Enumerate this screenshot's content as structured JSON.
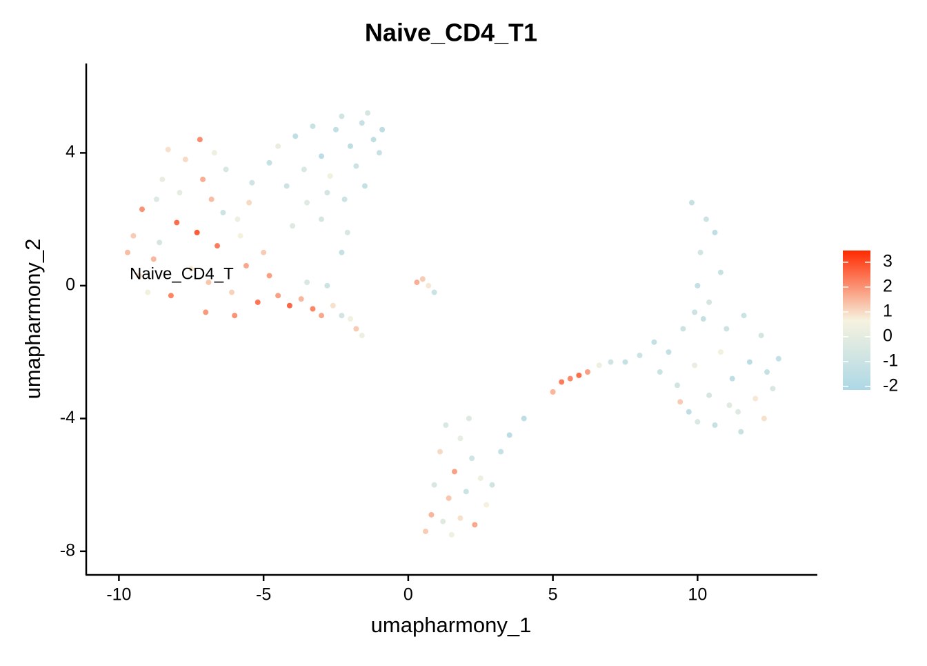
{
  "chart_data": {
    "type": "scatter",
    "title": "Naive_CD4_T1",
    "x_label": "umapharmony_1",
    "y_label": "umapharmony_2",
    "annotation": "Naive_CD4_T",
    "xlim": [
      -11.13,
      14.14
    ],
    "ylim": [
      -8.71,
      6.69
    ],
    "xticks": [
      -10,
      -5,
      0,
      5,
      10
    ],
    "yticks": [
      -8,
      -4,
      0,
      4
    ],
    "clim": [
      -2.14,
      3.47
    ],
    "cticks": [
      -2,
      -1,
      0,
      1,
      2,
      3
    ],
    "colormap": [
      "#add8e6",
      "#f6f2df",
      "#ff2a00"
    ],
    "x": [
      -9.5,
      -9.2,
      -8.8,
      -8.5,
      -8.2,
      -8.0,
      -7.7,
      -7.5,
      -7.2,
      -7.0,
      -6.8,
      -6.6,
      -6.3,
      -6.1,
      -5.9,
      -5.6,
      -5.4,
      -5.2,
      -9.0,
      -8.6,
      -7.9,
      -7.3,
      -6.9,
      -6.4,
      -5.8,
      -9.3,
      -8.3,
      -7.1,
      -6.0,
      -5.0,
      -4.8,
      -9.7,
      -8.7,
      -6.7,
      -5.5,
      -4.8,
      -4.5,
      -4.2,
      -3.9,
      -3.6,
      -3.3,
      -3.0,
      -2.8,
      -2.5,
      -2.3,
      -2.0,
      -1.8,
      -1.6,
      -1.4,
      -1.2,
      -1.0,
      -0.9,
      -2.7,
      -3.5,
      -2.2,
      -2.1,
      -2.3,
      -4.0,
      -1.5,
      -3.0,
      -4.5,
      -4.1,
      -3.7,
      -3.3,
      -3.0,
      -2.6,
      -2.3,
      -2.0,
      -1.8,
      -1.6,
      -3.5,
      -2.8,
      0.3,
      0.5,
      0.7,
      0.9,
      5.0,
      5.3,
      5.6,
      5.9,
      6.2,
      6.6,
      7.0,
      7.5,
      8.0,
      8.5,
      3.5,
      4.0,
      3.2,
      9.8,
      10.3,
      10.6,
      10.1,
      10.8,
      10.0,
      10.4,
      9.9,
      9.0,
      9.3,
      9.5,
      9.7,
      9.9,
      10.2,
      10.4,
      10.6,
      10.8,
      11.0,
      11.2,
      11.4,
      11.6,
      11.8,
      12.0,
      12.2,
      12.4,
      12.6,
      12.8,
      11.5,
      10.0,
      8.7,
      9.4,
      11.1,
      12.3,
      1.3,
      1.8,
      2.2,
      1.1,
      1.6,
      2.5,
      0.9,
      1.4,
      2.0,
      2.7,
      0.8,
      1.2,
      1.8,
      2.3,
      0.6,
      1.5,
      2.9,
      2.1
    ],
    "y": [
      1.5,
      2.3,
      0.8,
      3.2,
      -0.3,
      1.9,
      3.8,
      0.5,
      4.4,
      -0.8,
      2.6,
      1.2,
      3.5,
      -0.2,
      2.0,
      0.6,
      3.1,
      -0.5,
      -0.2,
      1.3,
      2.8,
      1.6,
      0.1,
      2.2,
      1.5,
      0.3,
      4.1,
      3.2,
      -0.9,
      1.0,
      0.3,
      1.0,
      2.6,
      4.0,
      2.5,
      3.7,
      4.2,
      3.0,
      4.5,
      3.5,
      4.8,
      3.9,
      2.8,
      4.7,
      5.1,
      4.2,
      3.6,
      4.9,
      5.2,
      4.4,
      4.0,
      4.7,
      3.3,
      2.5,
      2.6,
      1.6,
      1.0,
      1.8,
      3.0,
      2.0,
      -0.3,
      -0.6,
      -0.4,
      -0.7,
      -0.9,
      -0.6,
      -0.9,
      -1.0,
      -1.3,
      -1.5,
      0.1,
      0.0,
      0.1,
      0.2,
      0.0,
      -0.2,
      -3.2,
      -2.9,
      -2.8,
      -2.7,
      -2.6,
      -2.4,
      -2.3,
      -2.3,
      -2.1,
      -1.7,
      -4.5,
      -4.0,
      -5.0,
      2.5,
      2.0,
      1.6,
      1.0,
      0.4,
      0.0,
      -0.5,
      -0.8,
      -2.0,
      -3.0,
      -1.3,
      -3.8,
      -2.4,
      -1.0,
      -3.3,
      -4.2,
      -2.0,
      -1.3,
      -2.8,
      -3.8,
      -0.9,
      -2.3,
      -3.4,
      -1.5,
      -2.6,
      -3.1,
      -2.2,
      -4.4,
      -4.1,
      -2.6,
      -3.5,
      -3.6,
      -4.0,
      -4.2,
      -4.6,
      -5.2,
      -5.0,
      -5.6,
      -5.8,
      -6.0,
      -6.4,
      -6.2,
      -6.6,
      -6.9,
      -7.1,
      -7.0,
      -7.2,
      -7.4,
      -7.5,
      -6.0,
      -4.0
    ],
    "values": [
      1.2,
      2.0,
      1.5,
      0.2,
      2.2,
      2.5,
      1.0,
      0.8,
      2.1,
      1.9,
      1.4,
      2.3,
      -0.5,
      1.1,
      0.3,
      1.7,
      -0.8,
      2.4,
      0.5,
      -0.6,
      0.0,
      2.8,
      1.3,
      -1.0,
      0.6,
      1.0,
      0.9,
      1.6,
      2.0,
      1.2,
      1.8,
      1.4,
      -0.3,
      0.4,
      1.0,
      -1.2,
      0.2,
      -0.9,
      -1.4,
      -0.4,
      -1.1,
      -1.6,
      -0.7,
      -1.3,
      -0.8,
      -1.5,
      -1.0,
      -1.2,
      -0.6,
      -1.4,
      -1.1,
      -1.5,
      0.5,
      -0.2,
      -1.0,
      -0.5,
      -1.2,
      -0.3,
      -1.3,
      -0.6,
      1.8,
      2.6,
      1.5,
      2.2,
      1.7,
      0.9,
      -0.8,
      0.5,
      1.2,
      0.3,
      -0.5,
      -1.0,
      1.6,
      1.2,
      0.8,
      -1.0,
      1.5,
      2.3,
      2.1,
      2.5,
      1.8,
      0.3,
      -0.8,
      -1.2,
      -1.0,
      -1.3,
      -1.6,
      -1.5,
      -1.2,
      -1.2,
      -0.9,
      -1.4,
      -0.7,
      -1.1,
      -1.3,
      -0.6,
      -1.0,
      -1.3,
      -0.8,
      -1.0,
      -1.5,
      0.2,
      -1.2,
      -0.6,
      -1.1,
      0.5,
      -0.9,
      -1.4,
      -0.3,
      -1.0,
      -1.6,
      0.8,
      -0.7,
      -1.2,
      -0.5,
      -1.3,
      -1.1,
      -0.4,
      -1.0,
      1.2,
      -0.2,
      0.9,
      -0.4,
      0.1,
      -0.8,
      1.0,
      1.8,
      0.3,
      -0.5,
      1.3,
      -1.0,
      0.7,
      1.5,
      -0.2,
      0.9,
      1.7,
      1.2,
      0.4,
      -0.8,
      -0.3
    ]
  }
}
